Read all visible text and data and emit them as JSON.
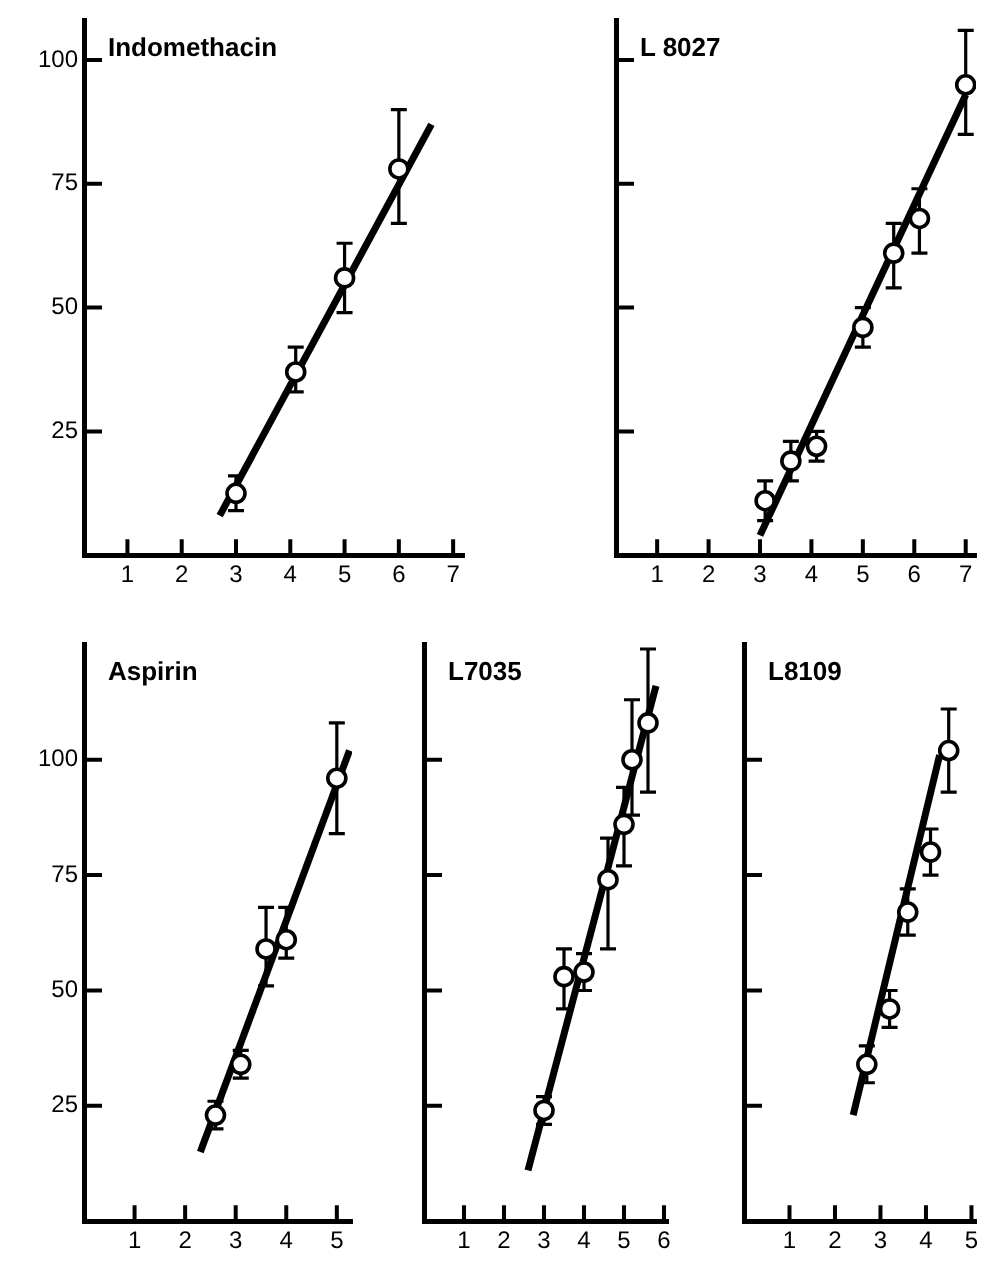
{
  "chart_data": [
    {
      "type": "scatter",
      "title": "Indomethacin",
      "xlim": [
        0.2,
        7.2
      ],
      "xticks": [
        1,
        2,
        3,
        4,
        5,
        6,
        7
      ],
      "ylim": [
        0,
        108
      ],
      "yticks": [
        25,
        50,
        75,
        100
      ],
      "grid": false,
      "legend": false,
      "series": [
        {
          "type": "scatter",
          "color": "#000000",
          "marker": "circle",
          "x": [
            3,
            4.1,
            5,
            6
          ],
          "values": [
            12.5,
            37,
            56,
            78
          ],
          "errors": [
            [
              9,
              16
            ],
            [
              33,
              42
            ],
            [
              49,
              63
            ],
            [
              67,
              90
            ]
          ]
        },
        {
          "type": "line",
          "color": "#000000",
          "marker": "none",
          "line_style": "solid",
          "x": [
            2.7,
            6.6
          ],
          "values": [
            8,
            87
          ]
        }
      ]
    },
    {
      "type": "scatter",
      "title": "L 8027",
      "xlim": [
        0.2,
        7.2
      ],
      "xticks": [
        1,
        2,
        3,
        4,
        5,
        6,
        7
      ],
      "ylim": [
        0,
        108
      ],
      "yticks": [
        25,
        50,
        75,
        100
      ],
      "tick_labels": "x",
      "grid": false,
      "legend": false,
      "series": [
        {
          "type": "scatter",
          "color": "#000000",
          "marker": "circle",
          "x": [
            3.1,
            3.6,
            4.1,
            5,
            5.6,
            6.1,
            7
          ],
          "values": [
            11,
            19,
            22,
            46,
            61,
            68,
            95
          ],
          "errors": [
            4,
            4,
            3,
            4,
            [
              54,
              67
            ],
            [
              61,
              74
            ],
            [
              85,
              106
            ]
          ]
        },
        {
          "type": "line",
          "color": "#000000",
          "marker": "none",
          "line_style": "solid",
          "x": [
            3,
            7
          ],
          "values": [
            4,
            93
          ]
        }
      ]
    },
    {
      "type": "scatter",
      "title": "Aspirin",
      "xlim": [
        0,
        5.3
      ],
      "xticks": [
        1,
        2,
        3,
        4,
        5
      ],
      "ylim": [
        0,
        125
      ],
      "yticks": [
        25,
        50,
        75,
        100
      ],
      "grid": false,
      "legend": false,
      "series": [
        {
          "type": "scatter",
          "color": "#000000",
          "marker": "circle",
          "x": [
            2.6,
            3.1,
            3.6,
            4,
            5
          ],
          "values": [
            23,
            34,
            59,
            61,
            96
          ],
          "errors": [
            3,
            3,
            [
              51,
              68
            ],
            [
              57,
              68
            ],
            [
              84,
              108
            ]
          ]
        },
        {
          "type": "line",
          "color": "#000000",
          "marker": "none",
          "line_style": "solid",
          "x": [
            2.3,
            5.25
          ],
          "values": [
            15,
            102
          ]
        }
      ]
    },
    {
      "type": "scatter",
      "title": "L7035",
      "xlim": [
        0,
        6.1
      ],
      "xticks": [
        1,
        2,
        3,
        4,
        5,
        6
      ],
      "ylim": [
        0,
        125
      ],
      "yticks": [
        25,
        50,
        75,
        100
      ],
      "tick_labels": "x",
      "grid": false,
      "legend": false,
      "series": [
        {
          "type": "scatter",
          "color": "#000000",
          "marker": "circle",
          "x": [
            3,
            3.5,
            4,
            4.6,
            5,
            5.2,
            5.6
          ],
          "values": [
            24,
            53,
            54,
            74,
            86,
            100,
            108
          ],
          "errors": [
            3,
            [
              46,
              59
            ],
            4,
            [
              59,
              83
            ],
            [
              77,
              94
            ],
            [
              88,
              113
            ],
            [
              93,
              124
            ]
          ]
        },
        {
          "type": "line",
          "color": "#000000",
          "marker": "none",
          "line_style": "solid",
          "x": [
            2.6,
            5.8
          ],
          "values": [
            11,
            116
          ]
        }
      ]
    },
    {
      "type": "scatter",
      "title": "L8109",
      "xlim": [
        0,
        5.1
      ],
      "xticks": [
        1,
        2,
        3,
        4,
        5
      ],
      "ylim": [
        0,
        125
      ],
      "yticks": [
        25,
        50,
        75,
        100
      ],
      "tick_labels": "x",
      "grid": false,
      "legend": false,
      "series": [
        {
          "type": "scatter",
          "color": "#000000",
          "marker": "circle",
          "x": [
            2.7,
            3.2,
            3.6,
            4.1,
            4.5
          ],
          "values": [
            34,
            46,
            67,
            80,
            102
          ],
          "errors": [
            4,
            4,
            5,
            5,
            [
              93,
              111
            ]
          ]
        },
        {
          "type": "line",
          "color": "#000000",
          "marker": "none",
          "line_style": "solid",
          "x": [
            2.4,
            4.3
          ],
          "values": [
            23,
            101
          ]
        }
      ]
    }
  ]
}
